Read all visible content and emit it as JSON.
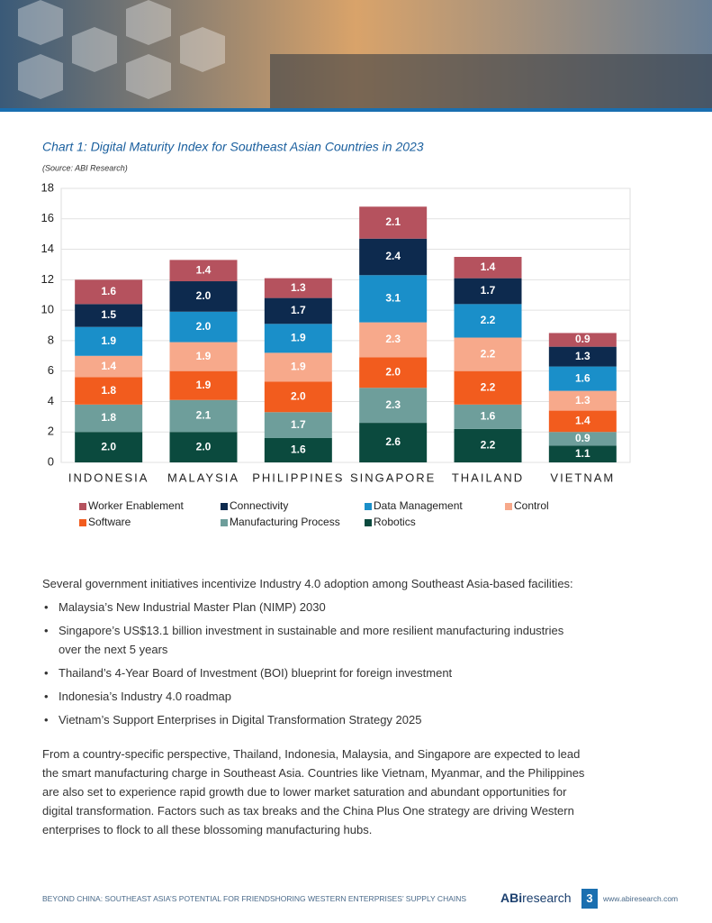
{
  "chart_data": {
    "type": "stacked_bar",
    "title": "Chart 1: Digital Maturity Index for Southeast Asian Countries in 2023",
    "source": "(Source: ABI Research)",
    "categories": [
      "INDONESIA",
      "MALAYSIA",
      "PHILIPPINES",
      "SINGAPORE",
      "THAILAND",
      "VIETNAM"
    ],
    "series": [
      {
        "name": "Worker Enablement",
        "color": "#b5525e",
        "values": [
          1.6,
          1.4,
          1.3,
          2.1,
          1.4,
          0.9
        ],
        "value_labels": [
          "1.6",
          "1.4",
          "1.3",
          "2.1",
          "1.4",
          "0.9"
        ]
      },
      {
        "name": "Connectivity",
        "color": "#0d2a4e",
        "values": [
          1.5,
          2.0,
          1.7,
          2.4,
          1.7,
          1.3
        ],
        "value_labels": [
          "1.5",
          "2.0",
          "1.7",
          "2.4",
          "1.7",
          "1.3"
        ]
      },
      {
        "name": "Data Management",
        "color": "#1a8fc9",
        "values": [
          1.9,
          2.0,
          1.9,
          3.1,
          2.2,
          1.6
        ],
        "value_labels": [
          "1.9",
          "2.0",
          "1.9",
          "3.1",
          "2.2",
          "1.6"
        ]
      },
      {
        "name": "Control",
        "color": "#f7a98b",
        "values": [
          1.4,
          1.9,
          1.9,
          2.3,
          2.2,
          1.3
        ],
        "value_labels": [
          "1.4",
          "1.9",
          "1.9",
          "2.3",
          "2.2",
          "1.3"
        ]
      },
      {
        "name": "Software",
        "color": "#f25c1e",
        "values": [
          1.8,
          1.9,
          2.0,
          2.0,
          2.2,
          1.4
        ],
        "value_labels": [
          "1.8",
          "1.9",
          "2.0",
          "2.0",
          "2.2",
          "1.4"
        ]
      },
      {
        "name": "Manufacturing Process",
        "color": "#6e9e9b",
        "values": [
          1.8,
          2.1,
          1.7,
          2.3,
          1.6,
          0.9
        ],
        "value_labels": [
          "1.8",
          "2.1",
          "1.7",
          "2.3",
          "1.6",
          "0.9"
        ]
      },
      {
        "name": "Robotics",
        "color": "#0b4a3e",
        "values": [
          2.0,
          2.0,
          1.6,
          2.6,
          2.2,
          1.1
        ],
        "value_labels": [
          "2.0",
          "2.0",
          "1.6",
          "2.6",
          "2.2",
          "1.1"
        ]
      }
    ],
    "ylim": [
      0,
      18
    ],
    "yticks": [
      0,
      2,
      4,
      6,
      8,
      10,
      12,
      14,
      16,
      18
    ],
    "grid": true
  },
  "document": {
    "intro": "Several government initiatives incentivize Industry 4.0 adoption among Southeast Asia-based facilities:",
    "bullets": [
      "Malaysia’s New Industrial Master Plan (NIMP) 2030",
      "Singapore’s US$13.1 billion investment in sustainable and more resilient manufacturing industries over the next 5 years",
      "Thailand’s 4-Year Board of Investment (BOI) blueprint for foreign investment",
      "Indonesia’s Industry 4.0 roadmap",
      "Vietnam’s Support Enterprises in Digital Transformation Strategy 2025"
    ],
    "paragraph": "From a country-specific perspective, Thailand, Indonesia, Malaysia, and Singapore are expected to lead the smart manufacturing charge in Southeast Asia. Countries like Vietnam, Myanmar, and the Philippines are also set to experience rapid growth due to lower market saturation and abundant opportunities for digital transformation. Factors such as tax breaks and the China Plus One strategy are driving Western enterprises to flock to all these blossoming manufacturing hubs."
  },
  "footer": {
    "text": "BEYOND CHINA: SOUTHEAST ASIA’S POTENTIAL FOR FRIENDSHORING WESTERN ENTERPRISES’ SUPPLY CHAINS",
    "logo_bold": "ABi",
    "logo_rest": "research",
    "page": 3,
    "url": "www.abiresearch.com"
  }
}
